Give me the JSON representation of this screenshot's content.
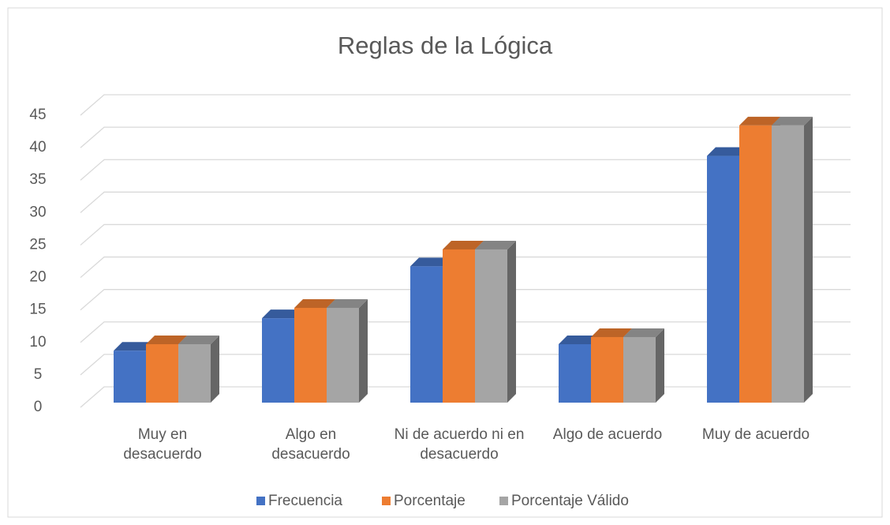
{
  "chart_data": {
    "type": "bar3d",
    "title": "Reglas de la Lógica",
    "categories": [
      "Muy en desacuerdo",
      "Algo en desacuerdo",
      "Ni de acuerdo ni en desacuerdo",
      "Algo de acuerdo",
      "Muy de acuerdo"
    ],
    "series": [
      {
        "name": "Frecuencia",
        "color": "#4472c4",
        "values": [
          8,
          13,
          21,
          9,
          38
        ]
      },
      {
        "name": "Porcentaje",
        "color": "#ed7d31",
        "values": [
          9.0,
          14.6,
          23.6,
          10.1,
          42.7
        ]
      },
      {
        "name": "Porcentaje Válido",
        "color": "#a5a5a5",
        "values": [
          9.0,
          14.6,
          23.6,
          10.1,
          42.7
        ]
      }
    ],
    "ylim": [
      0,
      45
    ],
    "yticks": [
      0,
      5,
      10,
      15,
      20,
      25,
      30,
      35,
      40,
      45
    ],
    "grid": true,
    "legend": "bottom"
  }
}
